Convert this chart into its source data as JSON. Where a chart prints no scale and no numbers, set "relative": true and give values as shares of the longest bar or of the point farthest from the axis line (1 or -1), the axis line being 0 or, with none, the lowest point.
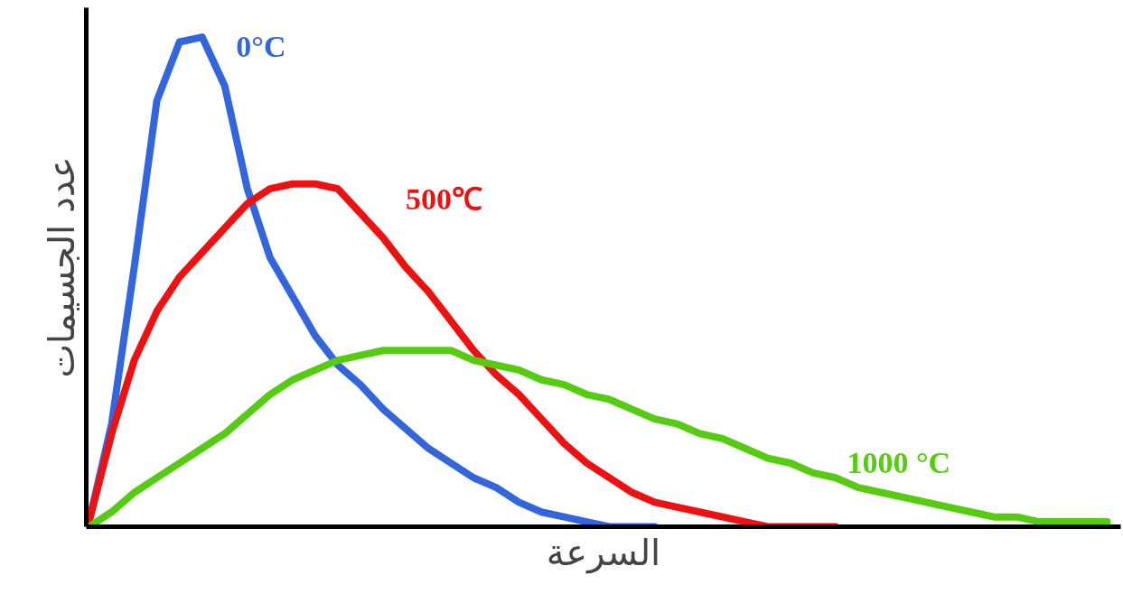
{
  "chart_data": {
    "type": "line",
    "relative": true,
    "xlabel": "السرعة",
    "ylabel": "عدد الجسيمات",
    "categories": [
      null,
      null,
      null,
      null,
      null,
      null,
      null,
      null,
      null,
      null,
      null,
      null,
      null,
      null,
      null,
      null,
      null,
      null,
      null,
      null,
      null,
      null,
      null,
      null,
      null,
      null,
      null,
      null,
      null,
      null,
      null,
      null,
      null,
      null,
      null,
      null,
      null,
      null,
      null,
      null,
      null,
      null,
      null,
      null,
      null,
      null
    ],
    "series": [
      {
        "name": "0°C",
        "color": "#3366dd",
        "values": [
          0.01,
          0.21,
          0.53,
          0.87,
          0.99,
          1.0,
          0.9,
          0.69,
          0.55,
          0.47,
          0.39,
          0.33,
          0.29,
          0.24,
          0.2,
          0.16,
          0.13,
          0.1,
          0.08,
          0.05,
          0.03,
          0.02,
          0.01,
          0,
          0,
          0,
          null,
          null,
          null,
          null,
          null,
          null,
          null,
          null,
          null,
          null,
          null,
          null,
          null,
          null,
          null,
          null,
          null,
          null,
          null,
          null
        ]
      },
      {
        "name": "500℃",
        "color": "#ee1111",
        "values": [
          0.01,
          0.19,
          0.34,
          0.44,
          0.51,
          0.56,
          0.61,
          0.66,
          0.69,
          0.7,
          0.7,
          0.69,
          0.64,
          0.59,
          0.53,
          0.48,
          0.42,
          0.36,
          0.31,
          0.27,
          0.22,
          0.17,
          0.13,
          0.1,
          0.07,
          0.05,
          0.04,
          0.03,
          0.02,
          0.01,
          0,
          0,
          0,
          0,
          null,
          null,
          null,
          null,
          null,
          null,
          null,
          null,
          null,
          null,
          null,
          null
        ]
      },
      {
        "name": "1000 °C",
        "color": "#55cc11",
        "values": [
          0,
          0.03,
          0.07,
          0.1,
          0.13,
          0.16,
          0.19,
          0.23,
          0.27,
          0.3,
          0.32,
          0.34,
          0.35,
          0.36,
          0.36,
          0.36,
          0.36,
          0.34,
          0.33,
          0.32,
          0.3,
          0.29,
          0.27,
          0.26,
          0.24,
          0.22,
          0.21,
          0.19,
          0.18,
          0.16,
          0.14,
          0.13,
          0.11,
          0.1,
          0.08,
          0.07,
          0.06,
          0.05,
          0.04,
          0.03,
          0.02,
          0.02,
          0.01,
          0.01,
          0.01,
          0.01
        ]
      }
    ]
  }
}
